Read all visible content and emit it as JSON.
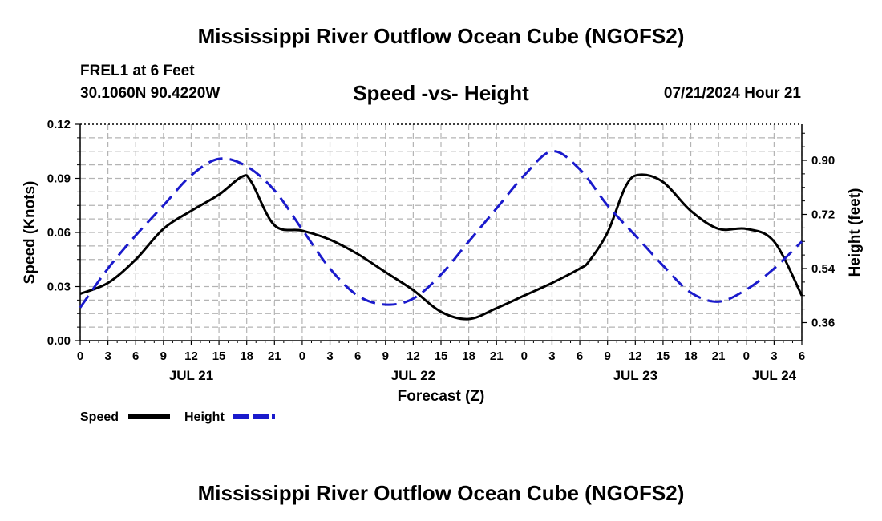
{
  "header": {
    "main_title": "Mississippi River Outflow Ocean Cube (NGOFS2)",
    "station": "FREL1 at 6 Feet",
    "coords": "30.1060N  90.4220W",
    "subtitle": "Speed -vs- Height",
    "datetime": "07/21/2024 Hour 21"
  },
  "footer": {
    "title": "Mississippi River Outflow Ocean Cube (NGOFS2)"
  },
  "colors": {
    "speed": "#000000",
    "height": "#1a1acc",
    "grid": "#b4b4b4"
  },
  "chart_data": {
    "type": "line",
    "title": "Speed -vs- Height",
    "xlabel": "Forecast (Z)",
    "ylabel": "Speed (Knots)",
    "y2label": "Height (feet)",
    "xlim": [
      0,
      78
    ],
    "ylim": [
      0,
      0.12
    ],
    "y2lim": [
      0.3,
      1.02
    ],
    "x_tick_labels": [
      "0",
      "3",
      "6",
      "9",
      "12",
      "15",
      "18",
      "21",
      "0",
      "3",
      "6",
      "9",
      "12",
      "15",
      "18",
      "21",
      "0",
      "3",
      "6",
      "9",
      "12",
      "15",
      "18",
      "21",
      "0",
      "3",
      "6"
    ],
    "y_ticks": [
      {
        "value": 0,
        "label": "0.00"
      },
      {
        "value": 0.03,
        "label": "0.03"
      },
      {
        "value": 0.06,
        "label": "0.06"
      },
      {
        "value": 0.09,
        "label": "0.09"
      },
      {
        "value": 0.12,
        "label": "0.12"
      }
    ],
    "y2_ticks": [
      {
        "value": 0.36,
        "label": "0.36"
      },
      {
        "value": 0.54,
        "label": "0.54"
      },
      {
        "value": 0.72,
        "label": "0.72"
      },
      {
        "value": 0.9,
        "label": "0.90"
      }
    ],
    "day_labels": [
      {
        "x": 12,
        "label": "JUL 21"
      },
      {
        "x": 36,
        "label": "JUL 22"
      },
      {
        "x": 60,
        "label": "JUL 23"
      },
      {
        "x": 75,
        "label": "JUL 24"
      }
    ],
    "legend": {
      "placement": "bottom-left",
      "entries": [
        {
          "name": "Speed",
          "style": "solid"
        },
        {
          "name": "Height",
          "style": "dashed"
        }
      ]
    },
    "series": [
      {
        "name": "Speed",
        "axis": "left",
        "style": "solid",
        "x": [
          0,
          3,
          6,
          9,
          12,
          15,
          17.5,
          18.5,
          21,
          24,
          27,
          30,
          33,
          36,
          39,
          42,
          45,
          48,
          51,
          54,
          55,
          57,
          59,
          60.5,
          63,
          66,
          69,
          72,
          75,
          78
        ],
        "values": [
          0.026,
          0.032,
          0.045,
          0.062,
          0.072,
          0.081,
          0.091,
          0.088,
          0.064,
          0.061,
          0.056,
          0.048,
          0.038,
          0.028,
          0.016,
          0.012,
          0.018,
          0.025,
          0.032,
          0.04,
          0.044,
          0.06,
          0.086,
          0.092,
          0.088,
          0.072,
          0.062,
          0.062,
          0.055,
          0.025
        ]
      },
      {
        "name": "Height",
        "axis": "right",
        "style": "dashed",
        "x": [
          0,
          3,
          6,
          9,
          12,
          15,
          18,
          21,
          24,
          27,
          30,
          33,
          36,
          39,
          42,
          45,
          48,
          51,
          54,
          57,
          60,
          63,
          66,
          69,
          72,
          75,
          78
        ],
        "values": [
          0.41,
          0.54,
          0.65,
          0.75,
          0.85,
          0.905,
          0.88,
          0.8,
          0.67,
          0.54,
          0.45,
          0.42,
          0.44,
          0.52,
          0.63,
          0.74,
          0.85,
          0.93,
          0.87,
          0.75,
          0.65,
          0.55,
          0.46,
          0.43,
          0.47,
          0.54,
          0.63
        ]
      }
    ]
  }
}
